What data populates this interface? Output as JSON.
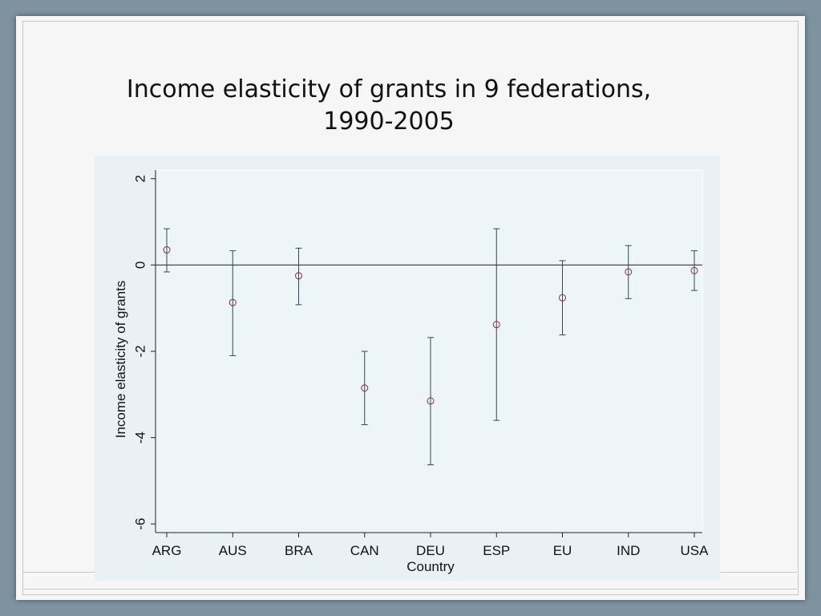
{
  "slide": {
    "title_line1": "Income elasticity of grants in 9 federations,",
    "title_line2": "1990-2005"
  },
  "chart_data": {
    "type": "scatter",
    "xlabel": "Country",
    "ylabel": "Income elasticity of grants",
    "categories": [
      "ARG",
      "AUS",
      "BRA",
      "CAN",
      "DEU",
      "ESP",
      "EU",
      "IND",
      "USA"
    ],
    "ylim": [
      -6.2,
      2.2
    ],
    "yticks": [
      2,
      0,
      -2,
      -4,
      -6
    ],
    "reference_line_y": 0,
    "series": [
      {
        "estimate": [
          0.35,
          -0.87,
          -0.25,
          -2.85,
          -3.15,
          -1.38,
          -0.76,
          -0.16,
          -0.13
        ],
        "lower": [
          -0.16,
          -2.1,
          -0.92,
          -3.7,
          -4.63,
          -3.6,
          -1.62,
          -0.78,
          -0.59
        ],
        "upper": [
          0.84,
          0.33,
          0.39,
          -2.0,
          -1.68,
          0.84,
          0.1,
          0.45,
          0.33
        ]
      }
    ],
    "colors": {
      "marker": "#8b2a3b",
      "errorbar": "#2f4a52",
      "axis": "#222222",
      "plot_bg": "#e9f1f4"
    }
  }
}
